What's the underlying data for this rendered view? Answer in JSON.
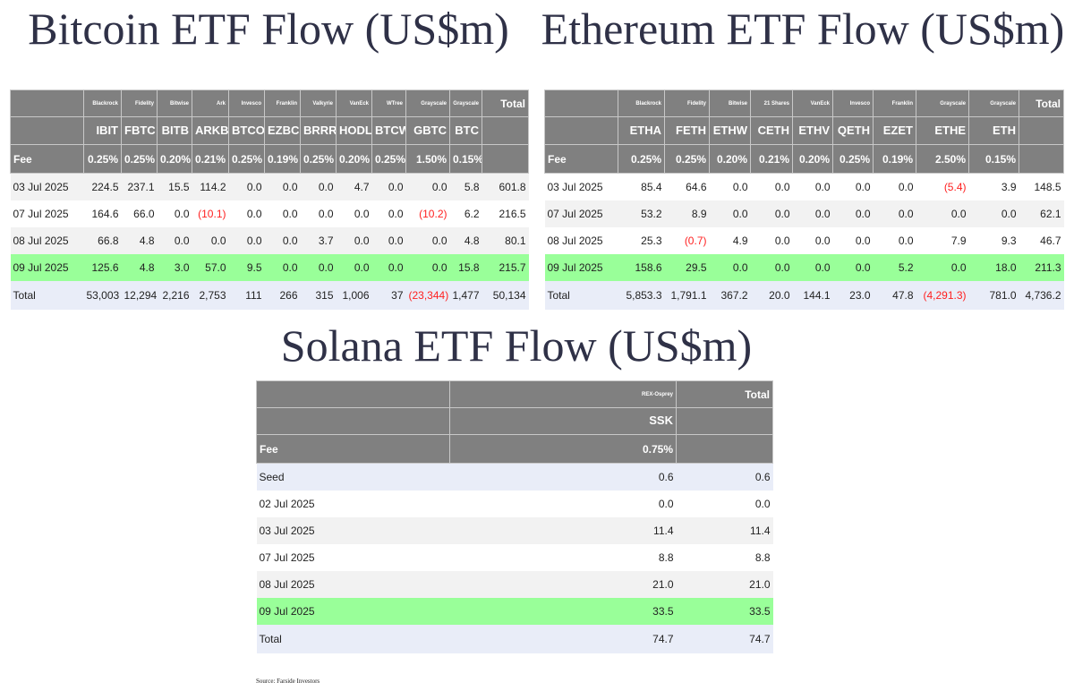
{
  "titles": {
    "bitcoin": "Bitcoin ETF Flow (US$m)",
    "ethereum": "Ethereum ETF Flow (US$m)",
    "solana": "Solana ETF Flow (US$m)"
  },
  "source": "Source: Farside Investors",
  "colors": {
    "header": "#808080",
    "highlight": "#99ff99",
    "total_row": "#e9edf8",
    "negative": "#ff2020"
  },
  "bitcoin": {
    "issuers": [
      "",
      "Blackrock",
      "Fidelity",
      "Bitwise",
      "Ark",
      "Invesco",
      "Franklin",
      "Valkyrie",
      "VanEck",
      "WTree",
      "Grayscale",
      "Grayscale",
      "Total"
    ],
    "tickers": [
      "",
      "IBIT",
      "FBTC",
      "BITB",
      "ARKB",
      "BTCO",
      "EZBC",
      "BRRR",
      "HODL",
      "BTCW",
      "GBTC",
      "BTC",
      ""
    ],
    "fees": [
      "Fee",
      "0.25%",
      "0.25%",
      "0.20%",
      "0.21%",
      "0.25%",
      "0.19%",
      "0.25%",
      "0.20%",
      "0.25%",
      "1.50%",
      "0.15%",
      ""
    ],
    "rows": [
      {
        "style": "gray",
        "cells": [
          "03 Jul 2025",
          "224.5",
          "237.1",
          "15.5",
          "114.2",
          "0.0",
          "0.0",
          "0.0",
          "4.7",
          "0.0",
          "0.0",
          "5.8",
          "601.8"
        ]
      },
      {
        "style": "white",
        "cells": [
          "07 Jul 2025",
          "164.6",
          "66.0",
          "0.0",
          "(10.1)",
          "0.0",
          "0.0",
          "0.0",
          "0.0",
          "0.0",
          "(10.2)",
          "6.2",
          "216.5"
        ]
      },
      {
        "style": "gray",
        "cells": [
          "08 Jul 2025",
          "66.8",
          "4.8",
          "0.0",
          "0.0",
          "0.0",
          "0.0",
          "3.7",
          "0.0",
          "0.0",
          "0.0",
          "4.8",
          "80.1"
        ]
      },
      {
        "style": "green",
        "cells": [
          "09 Jul 2025",
          "125.6",
          "4.8",
          "3.0",
          "57.0",
          "9.5",
          "0.0",
          "0.0",
          "0.0",
          "0.0",
          "0.0",
          "15.8",
          "215.7"
        ]
      },
      {
        "style": "lav",
        "cells": [
          "Total",
          "53,003",
          "12,294",
          "2,216",
          "2,753",
          "111",
          "266",
          "315",
          "1,006",
          "37",
          "(23,344)",
          "1,477",
          "50,134"
        ]
      }
    ]
  },
  "ethereum": {
    "issuers": [
      "",
      "Blackrock",
      "Fidelity",
      "Bitwise",
      "21 Shares",
      "VanEck",
      "Invesco",
      "Franklin",
      "Grayscale",
      "Grayscale",
      "Total"
    ],
    "tickers": [
      "",
      "ETHA",
      "FETH",
      "ETHW",
      "CETH",
      "ETHV",
      "QETH",
      "EZET",
      "ETHE",
      "ETH",
      ""
    ],
    "fees": [
      "Fee",
      "0.25%",
      "0.25%",
      "0.20%",
      "0.21%",
      "0.20%",
      "0.25%",
      "0.19%",
      "2.50%",
      "0.15%",
      ""
    ],
    "rows": [
      {
        "style": "white",
        "cells": [
          "03 Jul 2025",
          "85.4",
          "64.6",
          "0.0",
          "0.0",
          "0.0",
          "0.0",
          "0.0",
          "(5.4)",
          "3.9",
          "148.5"
        ]
      },
      {
        "style": "gray",
        "cells": [
          "07 Jul 2025",
          "53.2",
          "8.9",
          "0.0",
          "0.0",
          "0.0",
          "0.0",
          "0.0",
          "0.0",
          "0.0",
          "62.1"
        ]
      },
      {
        "style": "white",
        "cells": [
          "08 Jul 2025",
          "25.3",
          "(0.7)",
          "4.9",
          "0.0",
          "0.0",
          "0.0",
          "0.0",
          "7.9",
          "9.3",
          "46.7"
        ]
      },
      {
        "style": "green",
        "cells": [
          "09 Jul 2025",
          "158.6",
          "29.5",
          "0.0",
          "0.0",
          "0.0",
          "0.0",
          "5.2",
          "0.0",
          "18.0",
          "211.3"
        ]
      },
      {
        "style": "lav",
        "cells": [
          "Total",
          "5,853.3",
          "1,791.1",
          "367.2",
          "20.0",
          "144.1",
          "23.0",
          "47.8",
          "(4,291.3)",
          "781.0",
          "4,736.2"
        ]
      }
    ]
  },
  "solana": {
    "issuers": [
      "",
      "REX-Osprey",
      "Total"
    ],
    "tickers": [
      "",
      "SSK",
      ""
    ],
    "fees": [
      "Fee",
      "0.75%",
      ""
    ],
    "rows": [
      {
        "style": "lav",
        "cells": [
          "Seed",
          "0.6",
          "0.6"
        ]
      },
      {
        "style": "white",
        "cells": [
          "02 Jul 2025",
          "0.0",
          "0.0"
        ]
      },
      {
        "style": "gray",
        "cells": [
          "03 Jul 2025",
          "11.4",
          "11.4"
        ]
      },
      {
        "style": "white",
        "cells": [
          "07 Jul 2025",
          "8.8",
          "8.8"
        ]
      },
      {
        "style": "gray",
        "cells": [
          "08 Jul 2025",
          "21.0",
          "21.0"
        ]
      },
      {
        "style": "green",
        "cells": [
          "09 Jul 2025",
          "33.5",
          "33.5"
        ]
      },
      {
        "style": "lav",
        "cells": [
          "Total",
          "74.7",
          "74.7"
        ]
      }
    ]
  }
}
